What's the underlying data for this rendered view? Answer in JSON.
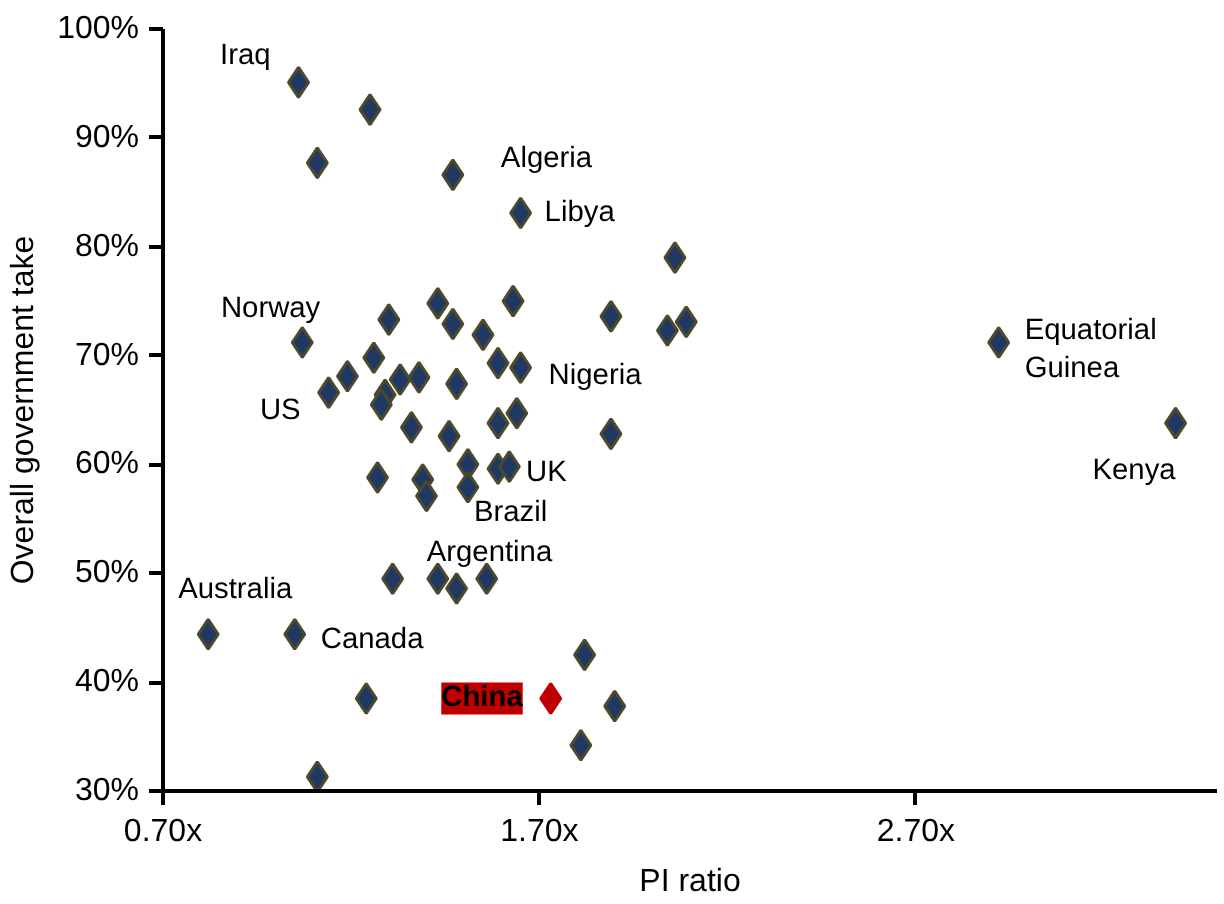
{
  "chart_data": {
    "type": "scatter",
    "xlabel": "PI ratio",
    "ylabel": "Overall government take",
    "marker": "diamond",
    "grid": false,
    "xlim": [
      0.7,
      3.5
    ],
    "xticks": [
      {
        "value": 0.7,
        "label": "0.70x"
      },
      {
        "value": 1.7,
        "label": "1.70x"
      },
      {
        "value": 2.7,
        "label": "2.70x"
      }
    ],
    "ylim": [
      30,
      100
    ],
    "yticks": [
      {
        "value": 30,
        "label": "30%"
      },
      {
        "value": 40,
        "label": "40%"
      },
      {
        "value": 50,
        "label": "50%"
      },
      {
        "value": 60,
        "label": "60%"
      },
      {
        "value": 70,
        "label": "70%"
      },
      {
        "value": 80,
        "label": "80%"
      },
      {
        "value": 90,
        "label": "90%"
      },
      {
        "value": 100,
        "label": "100%"
      }
    ],
    "series": [
      {
        "color": "#1f3864",
        "x": [
          1.06,
          1.25,
          1.11,
          1.47,
          1.65,
          2.06,
          1.07,
          1.3,
          1.43,
          1.47,
          1.55,
          1.63,
          1.89,
          2.04,
          2.09,
          1.26,
          1.19,
          1.14,
          1.33,
          1.38,
          1.48,
          1.59,
          1.65,
          1.29,
          1.28,
          1.36,
          1.46,
          1.59,
          1.64,
          1.89,
          1.27,
          1.39,
          1.4,
          1.51,
          1.51,
          1.59,
          1.62,
          1.31,
          1.43,
          1.48,
          1.56,
          0.82,
          1.05,
          1.82,
          1.24,
          1.9,
          1.81,
          1.11,
          2.92,
          3.39
        ],
        "values": [
          95.1,
          92.6,
          87.7,
          86.6,
          83.1,
          79.0,
          71.2,
          73.3,
          74.8,
          72.9,
          71.9,
          75.0,
          73.6,
          72.3,
          73.1,
          69.8,
          68.1,
          66.6,
          67.8,
          68.0,
          67.4,
          69.3,
          68.9,
          66.4,
          65.5,
          63.4,
          62.6,
          63.8,
          64.7,
          62.8,
          58.8,
          58.6,
          57.1,
          60.0,
          57.9,
          59.6,
          59.8,
          49.5,
          49.5,
          48.6,
          49.5,
          44.4,
          44.4,
          42.5,
          38.5,
          37.8,
          34.2,
          31.3,
          71.2,
          63.8
        ]
      },
      {
        "color": "#c00000",
        "x": [
          1.73
        ],
        "values": [
          38.5
        ]
      }
    ],
    "annotations": [
      {
        "text": "Iraq",
        "x": 1.06,
        "y": 95.1
      },
      {
        "text": "Algeria",
        "x": 1.47,
        "y": 86.6
      },
      {
        "text": "Libya",
        "x": 1.65,
        "y": 83.1
      },
      {
        "text": "Norway",
        "x": 1.07,
        "y": 71.2
      },
      {
        "text": "US",
        "x": 1.14,
        "y": 66.6
      },
      {
        "text": "Nigeria",
        "x": 1.65,
        "y": 68.9
      },
      {
        "text": "UK",
        "x": 1.59,
        "y": 59.6
      },
      {
        "text": "Brazil",
        "x": 1.51,
        "y": 57.9
      },
      {
        "text": "Argentina",
        "x": 1.56,
        "y": 49.5
      },
      {
        "text": "Australia",
        "x": 0.82,
        "y": 44.4
      },
      {
        "text": "Canada",
        "x": 1.05,
        "y": 44.4
      },
      {
        "text": "China",
        "x": 1.73,
        "y": 38.5
      },
      {
        "text": "Equatorial Guinea",
        "x": 2.92,
        "y": 71.2
      },
      {
        "text": "Kenya",
        "x": 3.39,
        "y": 63.8
      }
    ]
  }
}
